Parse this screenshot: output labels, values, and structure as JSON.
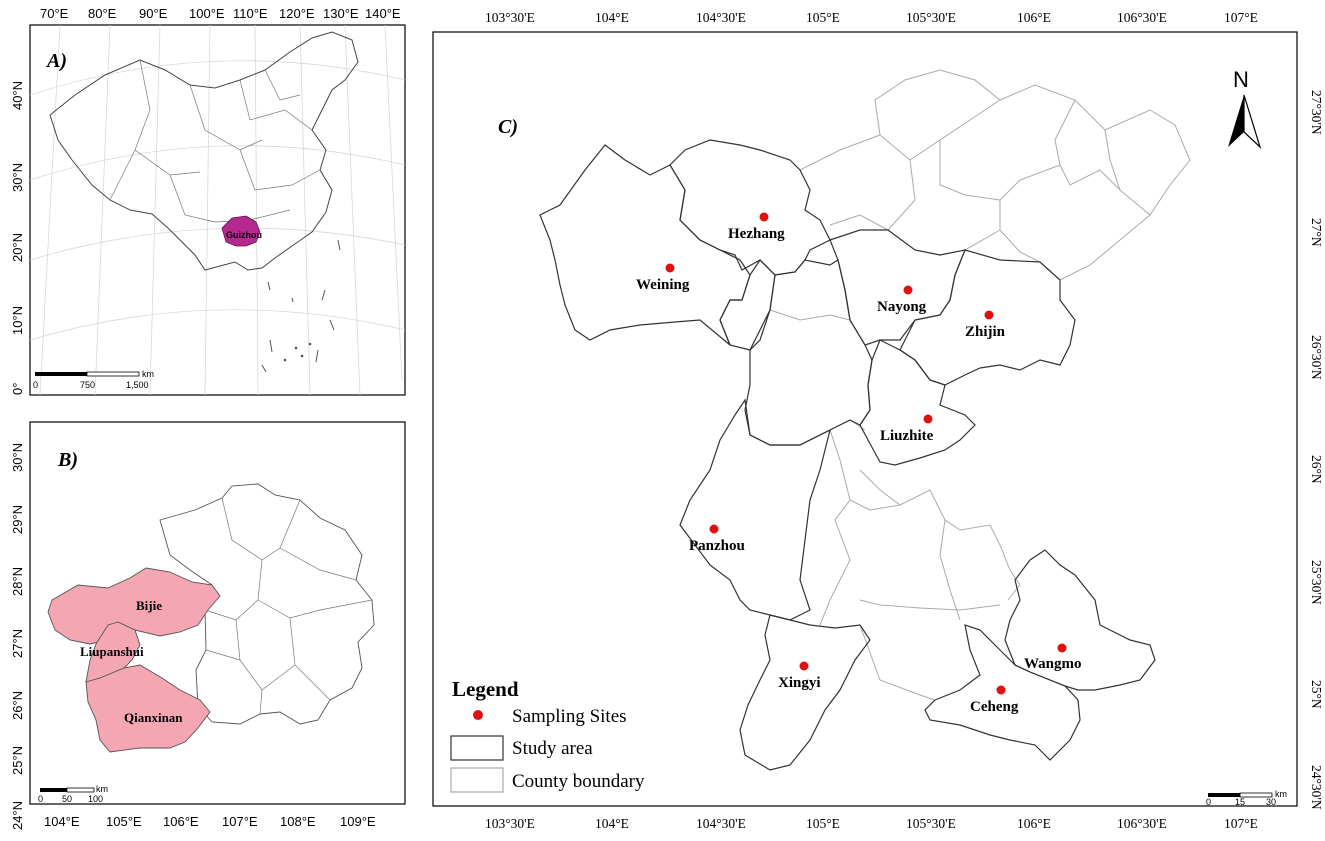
{
  "panel_a": {
    "label": "A)",
    "top_ticks": [
      "70°E",
      "80°E",
      "90°E",
      "100°E",
      "110°E",
      "120°E",
      "130°E",
      "140°E"
    ],
    "left_ticks": [
      "40°N",
      "30°N",
      "20°N",
      "10°N",
      "0°"
    ],
    "highlight_label": "Guizhou",
    "scale": {
      "unit": "km",
      "labels": [
        "0",
        "750",
        "1,500"
      ]
    }
  },
  "panel_b": {
    "label": "B)",
    "left_ticks": [
      "30°N",
      "29°N",
      "28°N",
      "27°N",
      "26°N",
      "25°N",
      "24°N"
    ],
    "bottom_ticks": [
      "104°E",
      "105°E",
      "106°E",
      "107°E",
      "108°E",
      "109°E"
    ],
    "regions": [
      "Bijie",
      "Liupanshui",
      "Qianxinan"
    ],
    "scale": {
      "unit": "km",
      "labels": [
        "0",
        "50",
        "100"
      ]
    }
  },
  "panel_c": {
    "label": "C)",
    "top_ticks": [
      "103°30'E",
      "104°E",
      "104°30'E",
      "105°E",
      "105°30'E",
      "106°E",
      "106°30'E",
      "107°E"
    ],
    "bottom_ticks": [
      "103°30'E",
      "104°E",
      "104°30'E",
      "105°E",
      "105°30'E",
      "106°E",
      "106°30'E",
      "107°E"
    ],
    "right_ticks": [
      "27°30'N",
      "27°N",
      "26°30'N",
      "26°N",
      "25°30'N",
      "25°N",
      "24°30'N"
    ],
    "north": "N",
    "scale": {
      "unit": "km",
      "labels": [
        "0",
        "15",
        "30"
      ]
    },
    "sites": [
      {
        "name": "Hezhang"
      },
      {
        "name": "Weining"
      },
      {
        "name": "Nayong"
      },
      {
        "name": "Zhijin"
      },
      {
        "name": "Liuzhite"
      },
      {
        "name": "Panzhou"
      },
      {
        "name": "Xingyi"
      },
      {
        "name": "Wangmo"
      },
      {
        "name": "Ceheng"
      }
    ],
    "legend": {
      "title": "Legend",
      "items": [
        "Sampling Sites",
        "Study area",
        "County boundary"
      ]
    },
    "colors": {
      "site": "#e01010",
      "study": "#333333",
      "county": "#aaaaaa"
    }
  },
  "colors": {
    "guizhou": "#b5288f",
    "prefecture": "#f4a7b3"
  }
}
